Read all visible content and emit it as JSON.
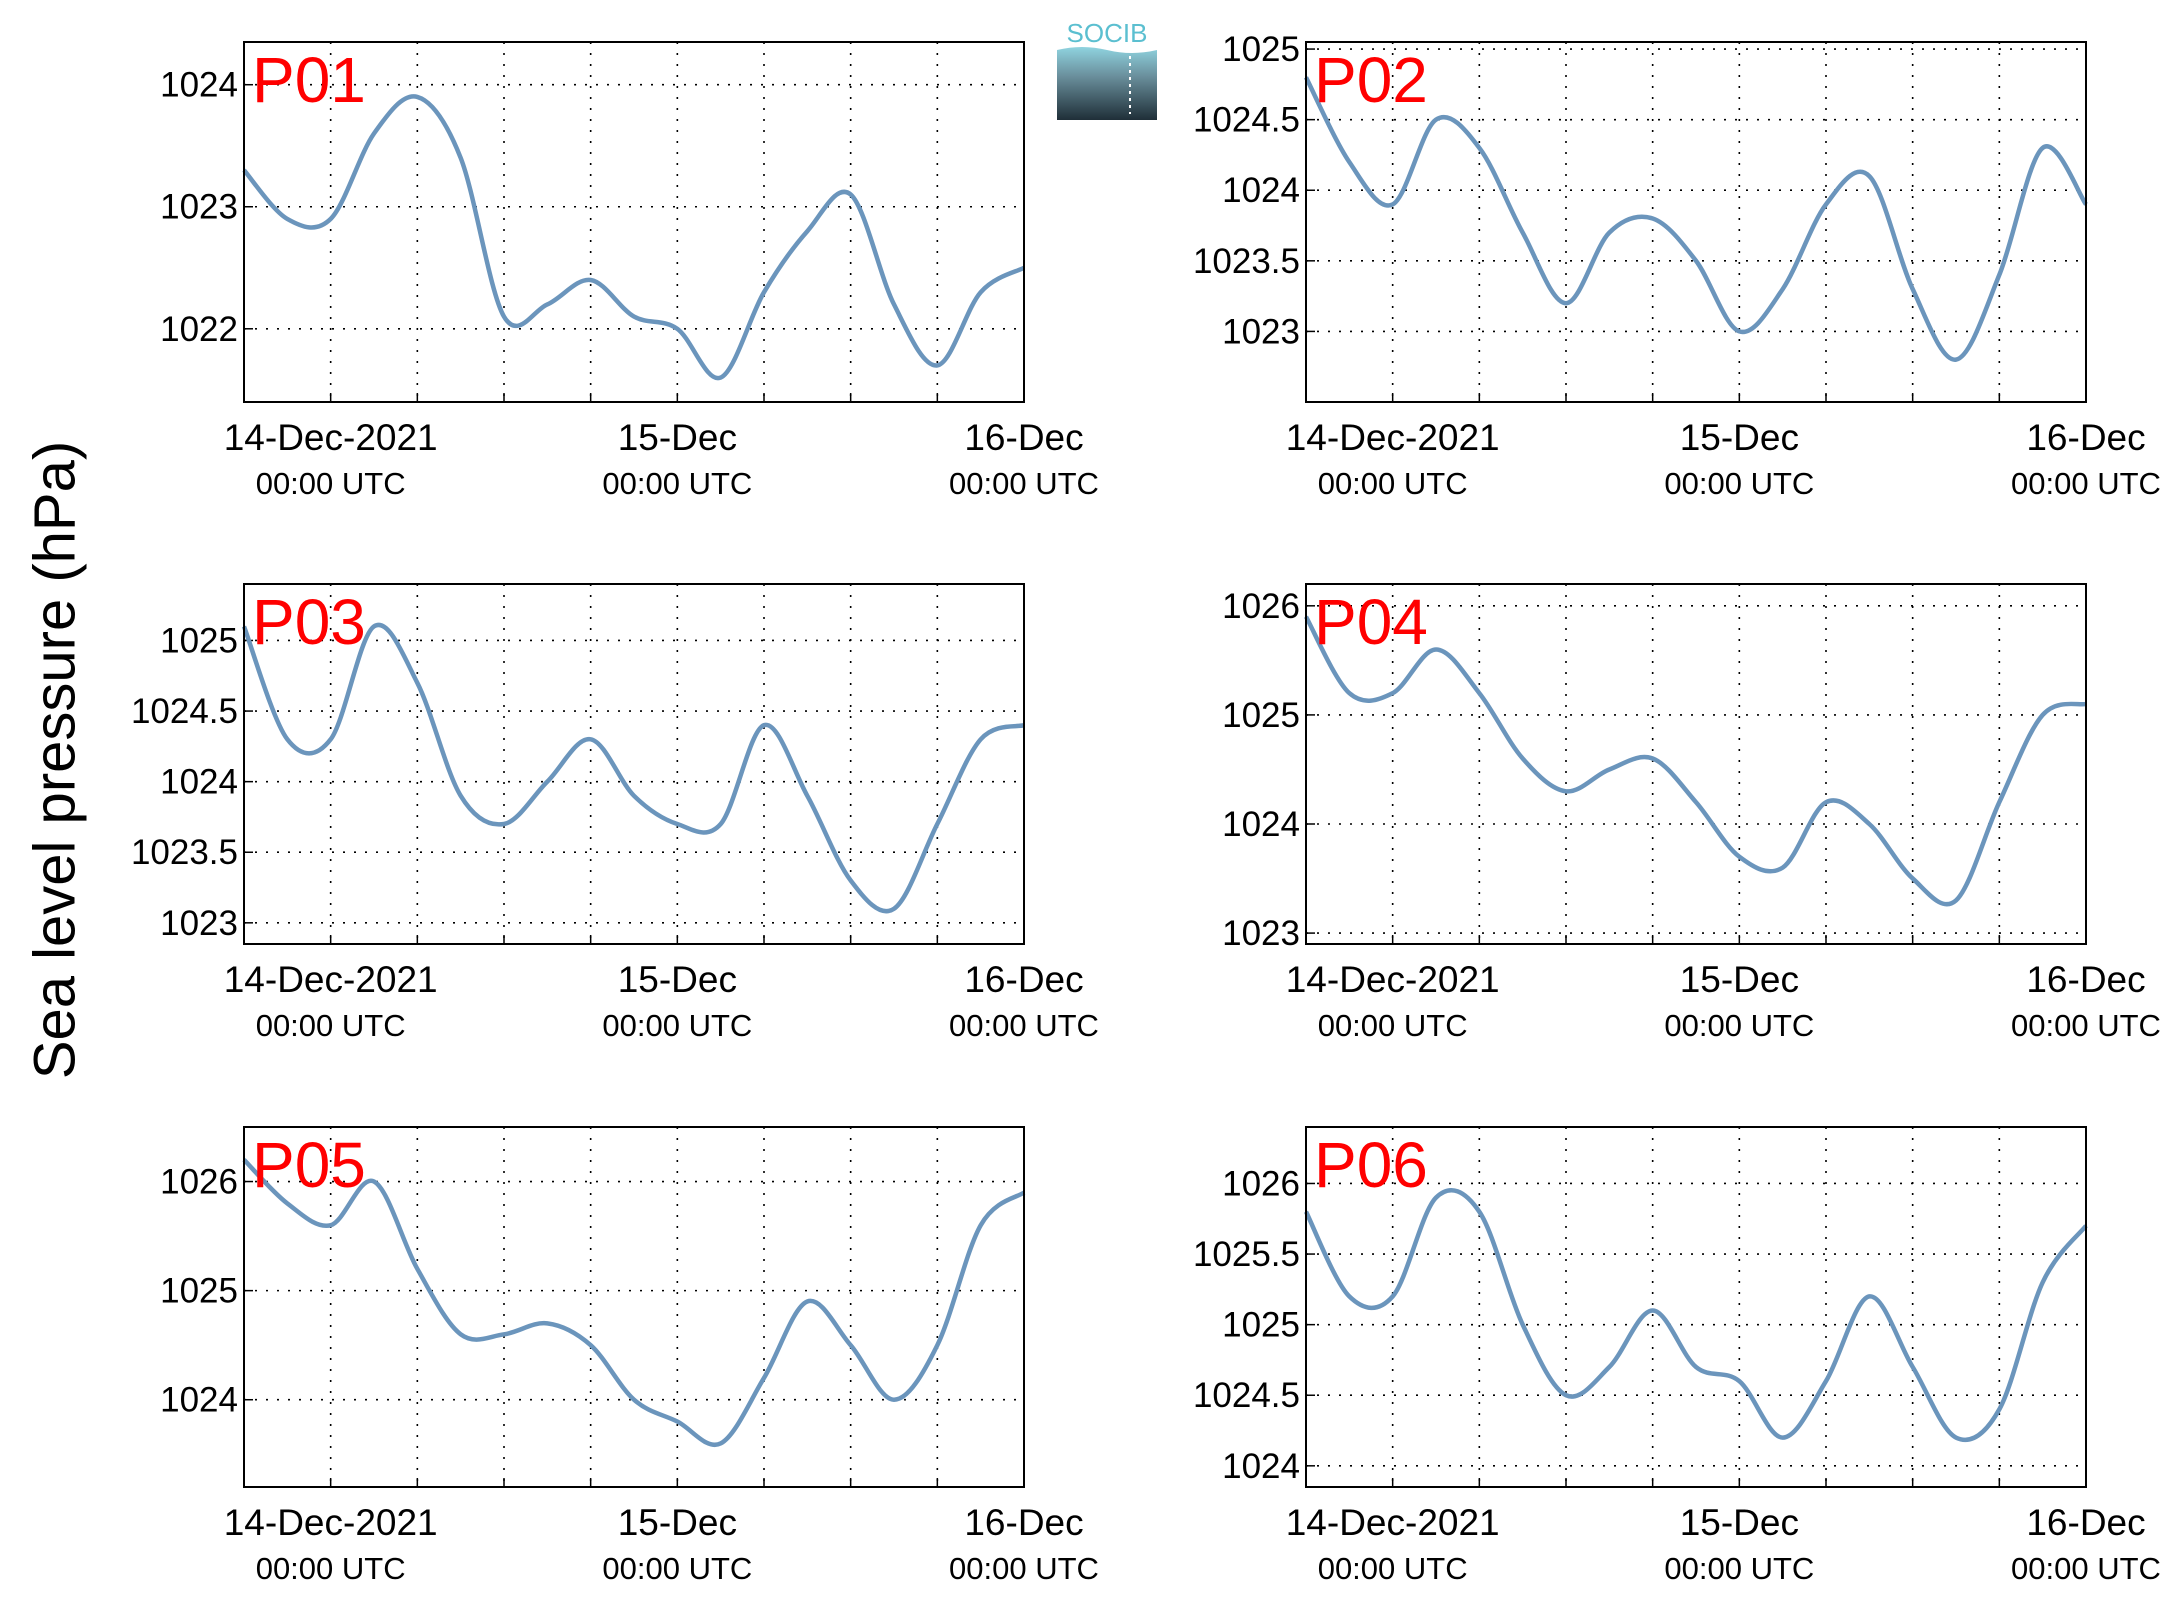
{
  "ylabel": "Sea level pressure (hPa)",
  "logo_text": "SOCIB",
  "colors": {
    "line": "#6b95bc",
    "label": "#ff0000",
    "grid": "#000000"
  },
  "x_ticks": [
    {
      "top": "14-Dec-2021",
      "bottom": "00:00 UTC"
    },
    {
      "top": "15-Dec",
      "bottom": "00:00 UTC"
    },
    {
      "top": "16-Dec",
      "bottom": "00:00 UTC"
    }
  ],
  "chart_data": [
    {
      "type": "line",
      "label": "P01",
      "xlabel": "",
      "ylabel": "Sea level pressure (hPa)",
      "xlim": [
        "2021-12-13T18:00Z",
        "2021-12-16T00:00Z"
      ],
      "ylim": [
        1021.4,
        1024.35
      ],
      "yticks": [
        1022,
        1023,
        1024
      ],
      "yticklabels": [
        "1022",
        "1023",
        "1024"
      ],
      "grid": true,
      "series": [
        {
          "x": [
            "2021-12-13T18:00Z",
            "2021-12-13T21:00Z",
            "2021-12-14T00:00Z",
            "2021-12-14T03:00Z",
            "2021-12-14T06:00Z",
            "2021-12-14T09:00Z",
            "2021-12-14T12:00Z",
            "2021-12-14T15:00Z",
            "2021-12-14T18:00Z",
            "2021-12-14T21:00Z",
            "2021-12-15T00:00Z",
            "2021-12-15T03:00Z",
            "2021-12-15T06:00Z",
            "2021-12-15T09:00Z",
            "2021-12-15T12:00Z",
            "2021-12-15T15:00Z",
            "2021-12-15T18:00Z",
            "2021-12-15T21:00Z",
            "2021-12-16T00:00Z"
          ],
          "values": [
            1023.3,
            1022.9,
            1022.9,
            1023.6,
            1023.9,
            1023.4,
            1022.1,
            1022.2,
            1022.4,
            1022.1,
            1022.0,
            1021.6,
            1022.3,
            1022.8,
            1023.1,
            1022.2,
            1021.7,
            1022.3,
            1022.5
          ]
        }
      ]
    },
    {
      "type": "line",
      "label": "P02",
      "xlabel": "",
      "ylabel": "Sea level pressure (hPa)",
      "xlim": [
        "2021-12-13T18:00Z",
        "2021-12-16T00:00Z"
      ],
      "ylim": [
        1022.5,
        1025.05
      ],
      "yticks": [
        1023,
        1023.5,
        1024,
        1024.5,
        1025
      ],
      "yticklabels": [
        "1023",
        "1023.5",
        "1024",
        "1024.5",
        "1025"
      ],
      "grid": true,
      "series": [
        {
          "x": [
            "2021-12-13T18:00Z",
            "2021-12-13T21:00Z",
            "2021-12-14T00:00Z",
            "2021-12-14T03:00Z",
            "2021-12-14T06:00Z",
            "2021-12-14T09:00Z",
            "2021-12-14T12:00Z",
            "2021-12-14T15:00Z",
            "2021-12-14T18:00Z",
            "2021-12-14T21:00Z",
            "2021-12-15T00:00Z",
            "2021-12-15T03:00Z",
            "2021-12-15T06:00Z",
            "2021-12-15T09:00Z",
            "2021-12-15T12:00Z",
            "2021-12-15T15:00Z",
            "2021-12-15T18:00Z",
            "2021-12-15T21:00Z",
            "2021-12-16T00:00Z"
          ],
          "values": [
            1024.8,
            1024.2,
            1023.9,
            1024.5,
            1024.3,
            1023.7,
            1023.2,
            1023.7,
            1023.8,
            1023.5,
            1023.0,
            1023.3,
            1023.9,
            1024.1,
            1023.3,
            1022.8,
            1023.4,
            1024.3,
            1023.9
          ]
        }
      ]
    },
    {
      "type": "line",
      "label": "P03",
      "xlabel": "",
      "ylabel": "Sea level pressure (hPa)",
      "xlim": [
        "2021-12-13T18:00Z",
        "2021-12-16T00:00Z"
      ],
      "ylim": [
        1022.85,
        1025.4
      ],
      "yticks": [
        1023,
        1023.5,
        1024,
        1024.5,
        1025
      ],
      "yticklabels": [
        "1023",
        "1023.5",
        "1024",
        "1024.5",
        "1025"
      ],
      "grid": true,
      "series": [
        {
          "x": [
            "2021-12-13T18:00Z",
            "2021-12-13T21:00Z",
            "2021-12-14T00:00Z",
            "2021-12-14T03:00Z",
            "2021-12-14T06:00Z",
            "2021-12-14T09:00Z",
            "2021-12-14T12:00Z",
            "2021-12-14T15:00Z",
            "2021-12-14T18:00Z",
            "2021-12-14T21:00Z",
            "2021-12-15T00:00Z",
            "2021-12-15T03:00Z",
            "2021-12-15T06:00Z",
            "2021-12-15T09:00Z",
            "2021-12-15T12:00Z",
            "2021-12-15T15:00Z",
            "2021-12-15T18:00Z",
            "2021-12-15T21:00Z",
            "2021-12-16T00:00Z"
          ],
          "values": [
            1025.1,
            1024.3,
            1024.3,
            1025.1,
            1024.7,
            1023.9,
            1023.7,
            1024.0,
            1024.3,
            1023.9,
            1023.7,
            1023.7,
            1024.4,
            1023.9,
            1023.3,
            1023.1,
            1023.7,
            1024.3,
            1024.4
          ]
        }
      ]
    },
    {
      "type": "line",
      "label": "P04",
      "xlabel": "",
      "ylabel": "Sea level pressure (hPa)",
      "xlim": [
        "2021-12-13T18:00Z",
        "2021-12-16T00:00Z"
      ],
      "ylim": [
        1022.9,
        1026.2
      ],
      "yticks": [
        1023,
        1024,
        1025,
        1026
      ],
      "yticklabels": [
        "1023",
        "1024",
        "1025",
        "1026"
      ],
      "grid": true,
      "series": [
        {
          "x": [
            "2021-12-13T18:00Z",
            "2021-12-13T21:00Z",
            "2021-12-14T00:00Z",
            "2021-12-14T03:00Z",
            "2021-12-14T06:00Z",
            "2021-12-14T09:00Z",
            "2021-12-14T12:00Z",
            "2021-12-14T15:00Z",
            "2021-12-14T18:00Z",
            "2021-12-14T21:00Z",
            "2021-12-15T00:00Z",
            "2021-12-15T03:00Z",
            "2021-12-15T06:00Z",
            "2021-12-15T09:00Z",
            "2021-12-15T12:00Z",
            "2021-12-15T15:00Z",
            "2021-12-15T18:00Z",
            "2021-12-15T21:00Z",
            "2021-12-16T00:00Z"
          ],
          "values": [
            1025.9,
            1025.2,
            1025.2,
            1025.6,
            1025.2,
            1024.6,
            1024.3,
            1024.5,
            1024.6,
            1024.2,
            1023.7,
            1023.6,
            1024.2,
            1024.0,
            1023.5,
            1023.3,
            1024.2,
            1025.0,
            1025.1
          ]
        }
      ]
    },
    {
      "type": "line",
      "label": "P05",
      "xlabel": "",
      "ylabel": "Sea level pressure (hPa)",
      "xlim": [
        "2021-12-13T18:00Z",
        "2021-12-16T00:00Z"
      ],
      "ylim": [
        1023.2,
        1026.5
      ],
      "yticks": [
        1024,
        1025,
        1026
      ],
      "yticklabels": [
        "1024",
        "1025",
        "1026"
      ],
      "grid": true,
      "series": [
        {
          "x": [
            "2021-12-13T18:00Z",
            "2021-12-13T21:00Z",
            "2021-12-14T00:00Z",
            "2021-12-14T03:00Z",
            "2021-12-14T06:00Z",
            "2021-12-14T09:00Z",
            "2021-12-14T12:00Z",
            "2021-12-14T15:00Z",
            "2021-12-14T18:00Z",
            "2021-12-14T21:00Z",
            "2021-12-15T00:00Z",
            "2021-12-15T03:00Z",
            "2021-12-15T06:00Z",
            "2021-12-15T09:00Z",
            "2021-12-15T12:00Z",
            "2021-12-15T15:00Z",
            "2021-12-15T18:00Z",
            "2021-12-15T21:00Z",
            "2021-12-16T00:00Z"
          ],
          "values": [
            1026.2,
            1025.8,
            1025.6,
            1026.0,
            1025.2,
            1024.6,
            1024.6,
            1024.7,
            1024.5,
            1024.0,
            1023.8,
            1023.6,
            1024.2,
            1024.9,
            1024.5,
            1024.0,
            1024.5,
            1025.6,
            1025.9
          ]
        }
      ]
    },
    {
      "type": "line",
      "label": "P06",
      "xlabel": "",
      "ylabel": "Sea level pressure (hPa)",
      "xlim": [
        "2021-12-13T18:00Z",
        "2021-12-16T00:00Z"
      ],
      "ylim": [
        1023.85,
        1026.4
      ],
      "yticks": [
        1024,
        1024.5,
        1025,
        1025.5,
        1026
      ],
      "yticklabels": [
        "1024",
        "1024.5",
        "1025",
        "1025.5",
        "1026"
      ],
      "grid": true,
      "series": [
        {
          "x": [
            "2021-12-13T18:00Z",
            "2021-12-13T21:00Z",
            "2021-12-14T00:00Z",
            "2021-12-14T03:00Z",
            "2021-12-14T06:00Z",
            "2021-12-14T09:00Z",
            "2021-12-14T12:00Z",
            "2021-12-14T15:00Z",
            "2021-12-14T18:00Z",
            "2021-12-14T21:00Z",
            "2021-12-15T00:00Z",
            "2021-12-15T03:00Z",
            "2021-12-15T06:00Z",
            "2021-12-15T09:00Z",
            "2021-12-15T12:00Z",
            "2021-12-15T15:00Z",
            "2021-12-15T18:00Z",
            "2021-12-15T21:00Z",
            "2021-12-16T00:00Z"
          ],
          "values": [
            1025.8,
            1025.2,
            1025.2,
            1025.9,
            1025.8,
            1025.0,
            1024.5,
            1024.7,
            1025.1,
            1024.7,
            1024.6,
            1024.2,
            1024.6,
            1025.2,
            1024.7,
            1024.2,
            1024.4,
            1025.3,
            1025.7
          ]
        }
      ]
    }
  ]
}
